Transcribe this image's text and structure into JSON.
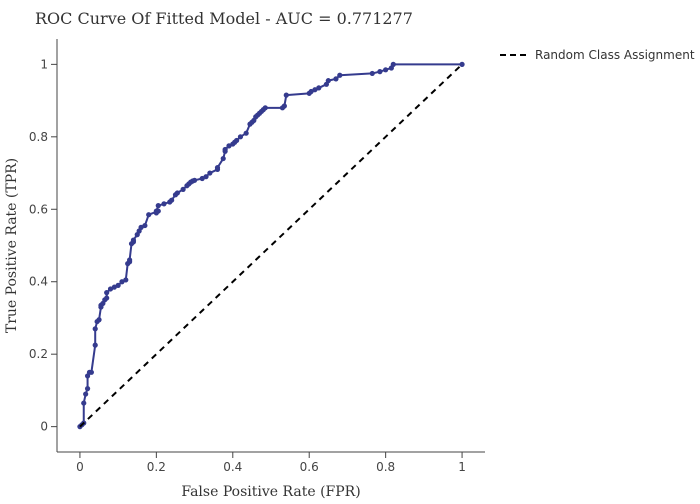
{
  "chart_data": {
    "type": "line",
    "title": "ROC Curve Of Fitted Model - AUC = 0.771277",
    "xlabel": "False Positive Rate (FPR)",
    "ylabel": "True Positive Rate (TPR)",
    "xlim": [
      -0.06,
      1.06
    ],
    "ylim": [
      -0.07,
      1.07
    ],
    "xticks": [
      0,
      0.2,
      0.4,
      0.6,
      0.8,
      1
    ],
    "xtick_labels": [
      "0",
      "0.2",
      "0.4",
      "0.6",
      "0.8",
      "1"
    ],
    "yticks": [
      0,
      0.2,
      0.4,
      0.6,
      0.8,
      1
    ],
    "ytick_labels": [
      "0",
      "0.2",
      "0.4",
      "0.6",
      "0.8",
      "1"
    ],
    "grid": false,
    "legend_position": "top-right",
    "series": [
      {
        "name": "",
        "style": "solid-line-with-markers",
        "color": "#353b8e",
        "x": [
          0,
          0.005,
          0.01,
          0.01,
          0.015,
          0.02,
          0.02,
          0.025,
          0.03,
          0.04,
          0.04,
          0.045,
          0.05,
          0.055,
          0.055,
          0.06,
          0.065,
          0.07,
          0.07,
          0.08,
          0.09,
          0.1,
          0.11,
          0.12,
          0.125,
          0.13,
          0.13,
          0.135,
          0.14,
          0.14,
          0.15,
          0.155,
          0.16,
          0.17,
          0.18,
          0.205,
          0.2,
          0.2,
          0.205,
          0.22,
          0.235,
          0.24,
          0.25,
          0.255,
          0.27,
          0.28,
          0.285,
          0.29,
          0.295,
          0.3,
          0.32,
          0.33,
          0.34,
          0.36,
          0.36,
          0.375,
          0.38,
          0.38,
          0.39,
          0.4,
          0.405,
          0.41,
          0.42,
          0.435,
          0.445,
          0.45,
          0.455,
          0.46,
          0.465,
          0.47,
          0.475,
          0.48,
          0.485,
          0.53,
          0.535,
          0.54,
          0.6,
          0.605,
          0.615,
          0.625,
          0.645,
          0.65,
          0.67,
          0.68,
          0.765,
          0.785,
          0.8,
          0.815,
          0.82,
          1
        ],
        "y": [
          0,
          0.005,
          0.01,
          0.065,
          0.09,
          0.105,
          0.14,
          0.15,
          0.15,
          0.225,
          0.27,
          0.29,
          0.295,
          0.33,
          0.335,
          0.34,
          0.35,
          0.355,
          0.37,
          0.38,
          0.385,
          0.39,
          0.4,
          0.405,
          0.45,
          0.455,
          0.46,
          0.505,
          0.51,
          0.515,
          0.53,
          0.54,
          0.55,
          0.555,
          0.585,
          0.595,
          0.59,
          0.595,
          0.61,
          0.615,
          0.62,
          0.625,
          0.64,
          0.645,
          0.655,
          0.665,
          0.67,
          0.675,
          0.678,
          0.68,
          0.685,
          0.69,
          0.7,
          0.71,
          0.715,
          0.74,
          0.76,
          0.765,
          0.775,
          0.78,
          0.785,
          0.79,
          0.8,
          0.81,
          0.835,
          0.84,
          0.845,
          0.855,
          0.86,
          0.865,
          0.87,
          0.875,
          0.88,
          0.88,
          0.885,
          0.915,
          0.92,
          0.925,
          0.93,
          0.935,
          0.945,
          0.955,
          0.96,
          0.97,
          0.975,
          0.98,
          0.985,
          0.99,
          1,
          1
        ]
      },
      {
        "name": "Random Class Assignment",
        "style": "dashed-line",
        "color": "#000000",
        "x": [
          0,
          1
        ],
        "y": [
          0,
          1
        ]
      }
    ]
  }
}
